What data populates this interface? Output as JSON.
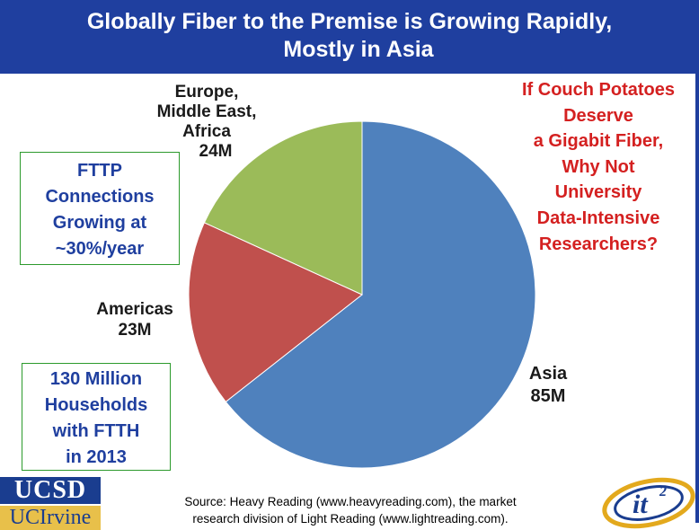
{
  "header": {
    "title_line1": "Globally Fiber to the Premise is Growing Rapidly,",
    "title_line2": "Mostly in Asia"
  },
  "chart_data": {
    "type": "pie",
    "slices": [
      {
        "name": "Asia",
        "label_value": "85M",
        "value": 85,
        "color": "#4f81bd"
      },
      {
        "name": "Americas",
        "label_value": "23M",
        "value": 23,
        "color": "#c0504d"
      },
      {
        "name": "Europe, Middle East, Africa",
        "label_value": "24M",
        "value": 24,
        "color": "#9bbb59"
      }
    ],
    "unit": "M"
  },
  "labels": {
    "emea_line1": "Europe,",
    "emea_line2": "Middle East,",
    "emea_line3": "Africa",
    "emea_value": "24M",
    "americas_line1": "Americas",
    "americas_value": "23M",
    "asia_line1": "Asia",
    "asia_value": "85M"
  },
  "fttp_box": {
    "line1": "FTTP",
    "line2": "Connections",
    "line3": "Growing at",
    "line4": "~30%/year"
  },
  "ftth_box": {
    "line1": "130 Million",
    "line2": "Households",
    "line3": "with FTTH",
    "line4": "in 2013"
  },
  "callout": {
    "line1": "If Couch Potatoes",
    "line2": "Deserve",
    "line3": "a Gigabit Fiber,",
    "line4": "Why Not",
    "line5": "University",
    "line6": "Data-Intensive",
    "line7": "Researchers?"
  },
  "source": {
    "line1": "Source: Heavy Reading (www.heavyreading.com), the market",
    "line2": "research division of Light Reading (www.lightreading.com)."
  },
  "logos": {
    "ucsd": "UCSD",
    "uci": "UCIrvine",
    "it2_main": "it",
    "it2_sup": "2"
  },
  "colors": {
    "title_bar": "#1f3f9f",
    "box_border": "#2c9a2c",
    "box_text": "#1f3f9f",
    "callout_text": "#d42020"
  }
}
